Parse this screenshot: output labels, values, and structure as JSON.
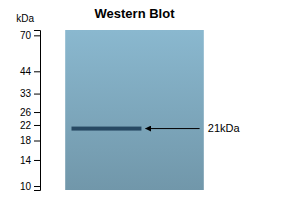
{
  "chart_data": {
    "type": "gel",
    "title": "Western Blot",
    "ylabel": "kDa",
    "values": [
      21
    ],
    "value_labels": [
      "21kDa"
    ],
    "data_labels": true,
    "color": "#1e3f5a",
    "log": "y",
    "ylim": [
      9.5,
      75
    ],
    "yticks": [
      70,
      44,
      33,
      26,
      22,
      18,
      14,
      10
    ],
    "tick_labels": "y"
  }
}
